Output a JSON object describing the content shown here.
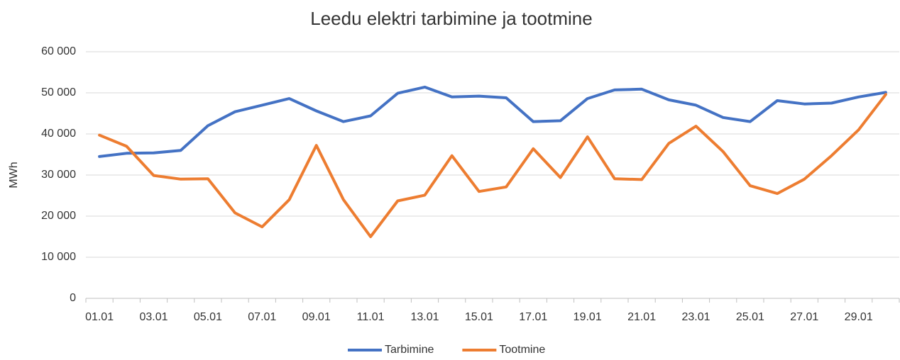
{
  "chart_data": {
    "type": "line",
    "title": "Leedu elektri tarbimine ja tootmine",
    "y_label": "MWh",
    "categories": [
      "01.01",
      null,
      "03.01",
      null,
      "05.01",
      null,
      "07.01",
      null,
      "09.01",
      null,
      "11.01",
      null,
      "13.01",
      null,
      "15.01",
      null,
      "17.01",
      null,
      "19.01",
      null,
      "21.01",
      null,
      "23.01",
      null,
      "25.01",
      null,
      "27.01",
      null,
      "29.01",
      null
    ],
    "series": [
      {
        "name": "Tarbimine",
        "color": "#4472c4",
        "values": [
          34500,
          35300,
          35400,
          36000,
          42000,
          45400,
          47000,
          48600,
          45600,
          43000,
          44400,
          49900,
          51400,
          49000,
          49200,
          48800,
          43000,
          43200,
          48600,
          50700,
          50900,
          48300,
          47000,
          44000,
          43000,
          48100,
          47300,
          47500,
          49000,
          50100
        ]
      },
      {
        "name": "Tootmine",
        "color": "#ed7d31",
        "values": [
          39700,
          37000,
          29900,
          29000,
          29100,
          20800,
          17400,
          24000,
          37200,
          24000,
          15000,
          23700,
          25100,
          34700,
          26000,
          27100,
          36400,
          29400,
          39300,
          29100,
          28900,
          37700,
          41900,
          35700,
          27400,
          25500,
          29000,
          34700,
          41000,
          49600
        ]
      }
    ],
    "ylim": [
      0,
      60000
    ],
    "yticks": [
      0,
      {
        "value": 10000,
        "label": "10 000"
      },
      {
        "value": 20000,
        "label": "20 000"
      },
      {
        "value": 30000,
        "label": "30 000"
      },
      {
        "value": 40000,
        "label": "40 000"
      },
      {
        "value": 50000,
        "label": "50 000"
      },
      {
        "value": 60000,
        "label": "60 000"
      }
    ],
    "grid": true,
    "legend": "bottom"
  }
}
